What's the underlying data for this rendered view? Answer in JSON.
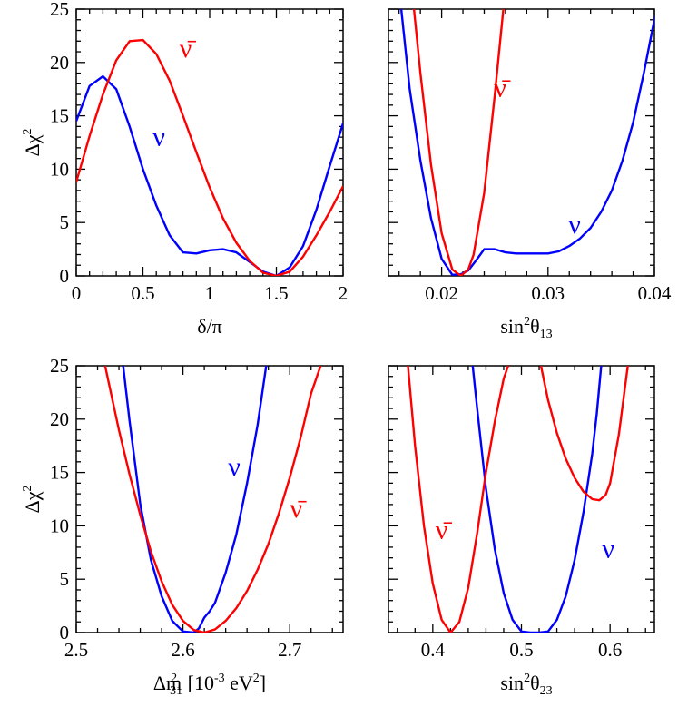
{
  "chart_data": [
    {
      "id": "dcp",
      "type": "line",
      "xlabel": "δ/π",
      "ylabel": "Δχ",
      "ylabel_sup": "2",
      "xlim": [
        0,
        2
      ],
      "ylim": [
        0,
        25
      ],
      "xticks": [
        0,
        0.5,
        1,
        1.5,
        2
      ],
      "xtick_labels": [
        "0",
        "0.5",
        "1",
        "1.5",
        "2"
      ],
      "yticks": [
        0,
        5,
        10,
        15,
        20,
        25
      ],
      "ytick_labels": [
        "0",
        "5",
        "10",
        "15",
        "20",
        "25"
      ],
      "series": [
        {
          "name": "ν",
          "color": "#0000ff",
          "x": [
            0,
            0.1,
            0.2,
            0.3,
            0.4,
            0.5,
            0.6,
            0.7,
            0.8,
            0.9,
            1.0,
            1.1,
            1.2,
            1.3,
            1.4,
            1.5,
            1.6,
            1.7,
            1.8,
            1.9,
            2.0
          ],
          "y": [
            14.5,
            17.8,
            18.7,
            17.5,
            14.0,
            10.0,
            6.6,
            3.8,
            2.2,
            2.1,
            2.4,
            2.5,
            2.2,
            1.3,
            0.4,
            0.0,
            0.8,
            2.8,
            6.2,
            10.3,
            14.3
          ]
        },
        {
          "name": "ν̄",
          "color": "#ff0000",
          "x": [
            0,
            0.1,
            0.2,
            0.3,
            0.4,
            0.5,
            0.6,
            0.7,
            0.8,
            0.9,
            1.0,
            1.1,
            1.2,
            1.3,
            1.4,
            1.5,
            1.6,
            1.7,
            1.8,
            1.9,
            2.0
          ],
          "y": [
            8.8,
            13.1,
            17.0,
            20.2,
            22.0,
            22.1,
            20.8,
            18.3,
            15.0,
            11.6,
            8.3,
            5.4,
            3.1,
            1.4,
            0.3,
            0.0,
            0.4,
            1.8,
            3.8,
            6.0,
            8.4
          ]
        }
      ],
      "annotations": [
        {
          "text": "ν",
          "color": "#0000ff",
          "x": 0.62,
          "y": 12.2
        },
        {
          "text": "ν̄",
          "color": "#ff0000",
          "x": 0.82,
          "y": 20.5
        }
      ]
    },
    {
      "id": "th13",
      "type": "line",
      "xlabel": "sin",
      "xlabel_sup": "2",
      "xlabel_rest": "θ",
      "xlabel_sub": "13",
      "xlim": [
        0.015,
        0.04
      ],
      "ylim": [
        0,
        25
      ],
      "xticks": [
        0.02,
        0.03,
        0.04
      ],
      "xtick_labels": [
        "0.02",
        "0.03",
        "0.04"
      ],
      "yticks": [
        0,
        5,
        10,
        15,
        20,
        25
      ],
      "series": [
        {
          "name": "ν",
          "color": "#0000ff",
          "x": [
            0.0162,
            0.017,
            0.018,
            0.019,
            0.02,
            0.021,
            0.0218,
            0.0225,
            0.0232,
            0.024,
            0.025,
            0.026,
            0.027,
            0.028,
            0.029,
            0.03,
            0.031,
            0.032,
            0.033,
            0.034,
            0.035,
            0.036,
            0.037,
            0.038,
            0.039,
            0.0402
          ],
          "y": [
            25.0,
            17.5,
            10.8,
            5.4,
            1.6,
            0.1,
            0.15,
            0.5,
            1.4,
            2.5,
            2.5,
            2.2,
            2.1,
            2.1,
            2.1,
            2.1,
            2.3,
            2.8,
            3.5,
            4.5,
            6.0,
            8.0,
            10.8,
            14.4,
            19.0,
            25.0
          ]
        },
        {
          "name": "ν̄",
          "color": "#ff0000",
          "x": [
            0.0174,
            0.018,
            0.019,
            0.02,
            0.021,
            0.0218,
            0.0225,
            0.023,
            0.024,
            0.025,
            0.0258
          ],
          "y": [
            25.0,
            19.0,
            10.4,
            4.0,
            0.6,
            0.0,
            0.6,
            2.0,
            7.8,
            17.0,
            25.0
          ]
        }
      ],
      "annotations": [
        {
          "text": "ν",
          "color": "#0000ff",
          "x": 0.0325,
          "y": 4.0
        },
        {
          "text": "ν̄",
          "color": "#ff0000",
          "x": 0.0255,
          "y": 16.8
        }
      ]
    },
    {
      "id": "dm31",
      "type": "line",
      "xlabel": "Δm",
      "xlabel_sup": "2",
      "xlabel_sub": "31",
      "xlabel_rest": " [10",
      "xlabel_sup2": "-3",
      "xlabel_rest2": " eV",
      "xlabel_sup3": "2",
      "xlabel_rest3": "]",
      "ylabel": "Δχ",
      "ylabel_sup": "2",
      "xlim": [
        2.5,
        2.75
      ],
      "ylim": [
        0,
        25
      ],
      "xticks": [
        2.5,
        2.6,
        2.7
      ],
      "xtick_labels": [
        "2.5",
        "2.6",
        "2.7"
      ],
      "yticks": [
        0,
        5,
        10,
        15,
        20,
        25
      ],
      "ytick_labels": [
        "0",
        "5",
        "10",
        "15",
        "20",
        "25"
      ],
      "series": [
        {
          "name": "ν",
          "color": "#0000ff",
          "x": [
            2.544,
            2.55,
            2.56,
            2.57,
            2.58,
            2.59,
            2.6,
            2.61,
            2.615,
            2.62,
            2.625,
            2.63,
            2.64,
            2.65,
            2.66,
            2.67,
            2.678
          ],
          "y": [
            25.0,
            19.8,
            12.0,
            6.8,
            3.4,
            1.1,
            0.1,
            0.0,
            0.4,
            1.4,
            2.0,
            2.8,
            5.6,
            9.2,
            14.0,
            19.5,
            25.0
          ]
        },
        {
          "name": "ν̄",
          "color": "#ff0000",
          "x": [
            2.527,
            2.54,
            2.55,
            2.56,
            2.57,
            2.58,
            2.59,
            2.6,
            2.61,
            2.62,
            2.63,
            2.64,
            2.65,
            2.66,
            2.67,
            2.68,
            2.69,
            2.7,
            2.71,
            2.72,
            2.729
          ],
          "y": [
            25.0,
            19.0,
            14.8,
            11.0,
            7.6,
            4.8,
            2.6,
            1.1,
            0.25,
            0.0,
            0.3,
            1.1,
            2.3,
            3.9,
            5.9,
            8.3,
            11.2,
            14.5,
            18.2,
            22.4,
            25.0
          ]
        }
      ],
      "annotations": [
        {
          "text": "ν",
          "color": "#0000ff",
          "x": 2.648,
          "y": 14.7
        },
        {
          "text": "ν̄",
          "color": "#ff0000",
          "x": 2.706,
          "y": 10.8
        }
      ]
    },
    {
      "id": "th23",
      "type": "line",
      "xlabel": "sin",
      "xlabel_sup": "2",
      "xlabel_rest": "θ",
      "xlabel_sub": "23",
      "xlim": [
        0.35,
        0.65
      ],
      "ylim": [
        0,
        25
      ],
      "xticks": [
        0.4,
        0.5,
        0.6
      ],
      "xtick_labels": [
        "0.4",
        "0.5",
        "0.6"
      ],
      "yticks": [
        0,
        5,
        10,
        15,
        20,
        25
      ],
      "series": [
        {
          "name": "ν",
          "color": "#0000ff",
          "x": [
            0.445,
            0.45,
            0.46,
            0.47,
            0.48,
            0.49,
            0.5,
            0.51,
            0.52,
            0.53,
            0.54,
            0.55,
            0.56,
            0.57,
            0.58,
            0.585,
            0.59
          ],
          "y": [
            25.0,
            21.0,
            13.5,
            7.8,
            3.7,
            1.2,
            0.1,
            0.0,
            0.0,
            0.1,
            1.2,
            3.4,
            6.8,
            11.3,
            16.8,
            20.5,
            25.0
          ]
        },
        {
          "name": "ν̄",
          "color": "#ff0000",
          "x": [
            0.372,
            0.38,
            0.39,
            0.4,
            0.41,
            0.42,
            0.43,
            0.44,
            0.45,
            0.46,
            0.47,
            0.48,
            0.485
          ],
          "y": [
            25.0,
            17.5,
            10.0,
            4.6,
            1.2,
            0.0,
            1.0,
            4.2,
            9.3,
            15.0,
            19.8,
            23.8,
            25.0
          ]
        },
        {
          "name": "ν̄ upper",
          "color": "#ff0000",
          "x": [
            0.522,
            0.53,
            0.54,
            0.55,
            0.56,
            0.57,
            0.58,
            0.588,
            0.595,
            0.6,
            0.61,
            0.62
          ],
          "y": [
            25.0,
            21.8,
            18.7,
            16.3,
            14.5,
            13.2,
            12.5,
            12.4,
            12.9,
            14.0,
            18.6,
            25.0
          ]
        }
      ],
      "annotations": [
        {
          "text": "ν̄",
          "color": "#ff0000",
          "x": 0.41,
          "y": 8.8
        },
        {
          "text": "ν",
          "color": "#0000ff",
          "x": 0.598,
          "y": 7.0
        }
      ]
    }
  ]
}
